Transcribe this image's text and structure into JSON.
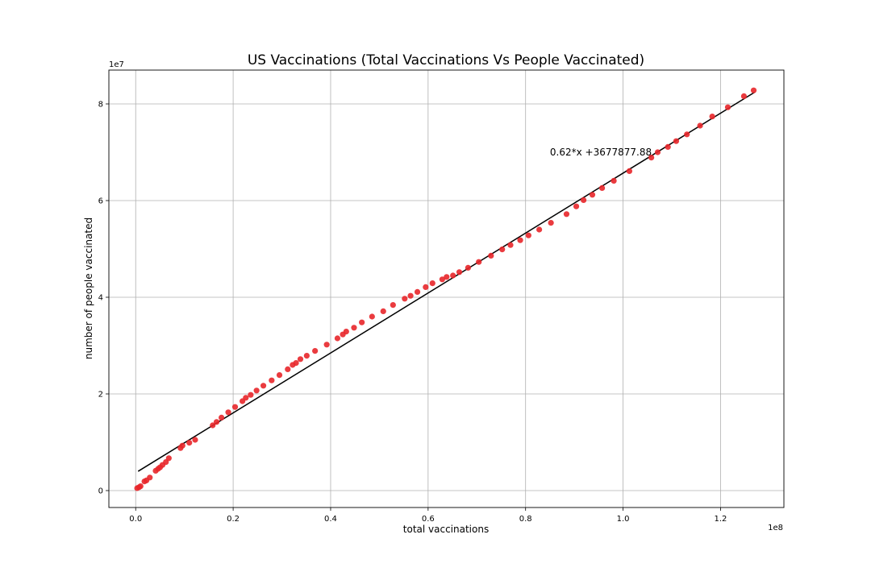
{
  "chart_data": {
    "type": "scatter",
    "title": "US Vaccinations (Total Vaccinations Vs People Vaccinated)",
    "xlabel": "total vaccinations",
    "ylabel": "number of people vaccinated",
    "x_offset_label": "1e8",
    "y_offset_label": "1e7",
    "xlim": [
      -5500000,
      133000000
    ],
    "ylim": [
      -3500000,
      87000000
    ],
    "x_ticks": [
      0,
      20000000,
      40000000,
      60000000,
      80000000,
      100000000,
      120000000
    ],
    "x_tick_labels": [
      "0.0",
      "0.2",
      "0.4",
      "0.6",
      "0.8",
      "1.0",
      "1.2"
    ],
    "y_ticks": [
      0,
      20000000,
      40000000,
      60000000,
      80000000
    ],
    "y_tick_labels": [
      "0",
      "2",
      "4",
      "6",
      "8"
    ],
    "grid": true,
    "point_color": "#e8262a",
    "line_color": "#000000",
    "fit_line": {
      "slope": 0.62,
      "intercept": 3677877.88,
      "x_range": [
        500000,
        127000000
      ]
    },
    "annotation": "0.62*x +3677877.88",
    "annotation_pos": [
      85000000,
      70000000
    ],
    "points": [
      [
        300000,
        500000
      ],
      [
        700000,
        700000
      ],
      [
        1000000,
        900000
      ],
      [
        1800000,
        1900000
      ],
      [
        2200000,
        2100000
      ],
      [
        2900000,
        2700000
      ],
      [
        4100000,
        4100000
      ],
      [
        4600000,
        4500000
      ],
      [
        5000000,
        4800000
      ],
      [
        5500000,
        5300000
      ],
      [
        6200000,
        5900000
      ],
      [
        6800000,
        6700000
      ],
      [
        9200000,
        8800000
      ],
      [
        9600000,
        9300000
      ],
      [
        11000000,
        9900000
      ],
      [
        12200000,
        10500000
      ],
      [
        15800000,
        13500000
      ],
      [
        16600000,
        14200000
      ],
      [
        17600000,
        15100000
      ],
      [
        19000000,
        16200000
      ],
      [
        20400000,
        17300000
      ],
      [
        21900000,
        18500000
      ],
      [
        22600000,
        19200000
      ],
      [
        23600000,
        19800000
      ],
      [
        24800000,
        20700000
      ],
      [
        26200000,
        21700000
      ],
      [
        27900000,
        22800000
      ],
      [
        29500000,
        23900000
      ],
      [
        31200000,
        25100000
      ],
      [
        32200000,
        26000000
      ],
      [
        32900000,
        26400000
      ],
      [
        33800000,
        27200000
      ],
      [
        35100000,
        27900000
      ],
      [
        36800000,
        28900000
      ],
      [
        39200000,
        30200000
      ],
      [
        41400000,
        31500000
      ],
      [
        42500000,
        32300000
      ],
      [
        43200000,
        32900000
      ],
      [
        44800000,
        33700000
      ],
      [
        46400000,
        34800000
      ],
      [
        48500000,
        36000000
      ],
      [
        50800000,
        37100000
      ],
      [
        52800000,
        38400000
      ],
      [
        55200000,
        39700000
      ],
      [
        56400000,
        40300000
      ],
      [
        57800000,
        41100000
      ],
      [
        59500000,
        42100000
      ],
      [
        60900000,
        42900000
      ],
      [
        62900000,
        43700000
      ],
      [
        63800000,
        44200000
      ],
      [
        65100000,
        44500000
      ],
      [
        66400000,
        45200000
      ],
      [
        68200000,
        46100000
      ],
      [
        70400000,
        47300000
      ],
      [
        72900000,
        48600000
      ],
      [
        75200000,
        49900000
      ],
      [
        76900000,
        50800000
      ],
      [
        78900000,
        51800000
      ],
      [
        80600000,
        52800000
      ],
      [
        82800000,
        54000000
      ],
      [
        85200000,
        55400000
      ],
      [
        88400000,
        57200000
      ],
      [
        90400000,
        58800000
      ],
      [
        91900000,
        60100000
      ],
      [
        93700000,
        61200000
      ],
      [
        95700000,
        62600000
      ],
      [
        98100000,
        64100000
      ],
      [
        101300000,
        66100000
      ],
      [
        105800000,
        68900000
      ],
      [
        107100000,
        70000000
      ],
      [
        109200000,
        71100000
      ],
      [
        110900000,
        72300000
      ],
      [
        113100000,
        73700000
      ],
      [
        115800000,
        75500000
      ],
      [
        118300000,
        77400000
      ],
      [
        121500000,
        79300000
      ],
      [
        124800000,
        81600000
      ],
      [
        126800000,
        82800000
      ]
    ]
  }
}
